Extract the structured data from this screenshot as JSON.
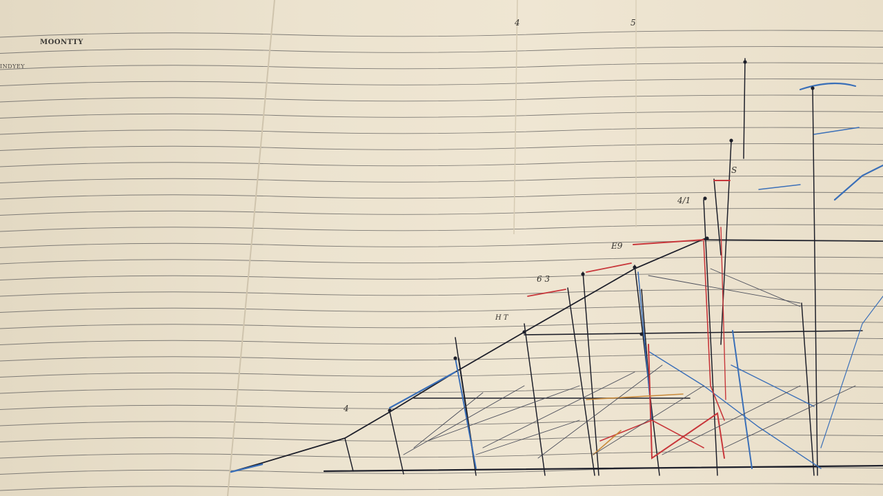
{
  "scene": {
    "description_texts": {
      "heading": "MOONTTY",
      "subheading": "INDYEY"
    },
    "handwritten_marks": [
      {
        "key": "m4",
        "text": "4"
      },
      {
        "key": "m5",
        "text": "5"
      },
      {
        "key": "m_ad",
        "text": "4/1"
      },
      {
        "key": "m_63",
        "text": "6 3"
      },
      {
        "key": "m_e",
        "text": "E9"
      },
      {
        "key": "m_ht",
        "text": "H T"
      },
      {
        "key": "m_s",
        "text": "S"
      },
      {
        "key": "m_a",
        "text": "4"
      }
    ],
    "colors": {
      "paper": "#ebe2ce",
      "rule_line": "#7d7a75",
      "ink_black": "#1d1f2a",
      "ink_red": "#c8363a",
      "ink_blue": "#3a6fb8",
      "ink_orange": "#c98a3a"
    }
  }
}
